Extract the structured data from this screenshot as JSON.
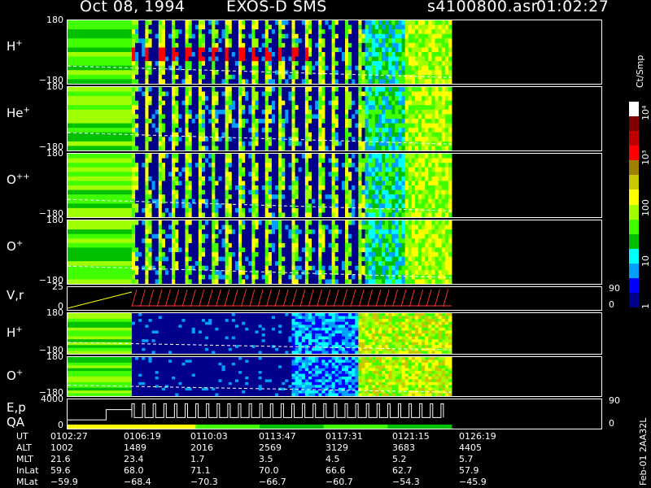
{
  "header": {
    "date": "Oct 08, 1994",
    "instrument": "EXOS-D SMS",
    "file": "s4100800.asr",
    "time": "01:02:27"
  },
  "panels": [
    {
      "label_main": "H",
      "label_sup": "+",
      "ymax": "180",
      "ymin": "−180",
      "kind": "spectro",
      "start": 0.12,
      "end": 0.72
    },
    {
      "label_main": "He",
      "label_sup": "+",
      "ymax": "180",
      "ymin": "−180",
      "kind": "spectro",
      "start": 0.12,
      "end": 0.72
    },
    {
      "label_main": "O",
      "label_sup": "++",
      "ymax": "180",
      "ymin": "−180",
      "kind": "spectro",
      "start": 0.12,
      "end": 0.72
    },
    {
      "label_main": "O",
      "label_sup": "+",
      "ymax": "180",
      "ymin": "−180",
      "kind": "spectro",
      "start": 0.12,
      "end": 0.72
    },
    {
      "label_main": "V,r",
      "label_sup": "",
      "ymax": "25",
      "ymin": "0",
      "kind": "line",
      "right_top": "90",
      "right_bottom": "0"
    },
    {
      "label_main": "H",
      "label_sup": "+",
      "ymax": "180",
      "ymin": "−180",
      "kind": "spectro2",
      "start": 0.12,
      "end": 0.72
    },
    {
      "label_main": "O",
      "label_sup": "+",
      "ymax": "180",
      "ymin": "−180",
      "kind": "spectro2",
      "start": 0.12,
      "end": 0.72
    },
    {
      "label_main": "E,p",
      "label_sup": "",
      "label2": "QA",
      "ymax": "4000",
      "ymin": "0",
      "kind": "step",
      "right_top": "90",
      "right_bottom": "0"
    }
  ],
  "colorbar": {
    "unit": "Ct/Smp",
    "ticks": [
      "1",
      "10",
      "100",
      "10³",
      "10⁴"
    ],
    "colors": [
      "#00008b",
      "#0000ff",
      "#00a0ff",
      "#00ffff",
      "#00c000",
      "#40ff00",
      "#a0ff00",
      "#ffff00",
      "#c8c800",
      "#a08000",
      "#ff0000",
      "#c00000",
      "#800000",
      "#ffffff"
    ]
  },
  "ephemeris": {
    "rows": [
      {
        "name": "UT",
        "values": [
          "0102:27",
          "0106:19",
          "0110:03",
          "0113:47",
          "0117:31",
          "0121:15",
          "0126:19"
        ]
      },
      {
        "name": "ALT",
        "values": [
          "1002",
          "1489",
          "2016",
          "2569",
          "3129",
          "3683",
          "4405"
        ]
      },
      {
        "name": "MLT",
        "values": [
          "21.6",
          "23.4",
          "1.7",
          "3.5",
          "4.5",
          "5.2",
          "5.7"
        ]
      },
      {
        "name": "InLat",
        "values": [
          "59.6",
          "68.0",
          "71.1",
          "70.0",
          "66.6",
          "62.7",
          "57.9"
        ]
      },
      {
        "name": "MLat",
        "values": [
          "−59.9",
          "−68.4",
          "−70.3",
          "−66.7",
          "−60.7",
          "−54.3",
          "−45.9"
        ]
      }
    ]
  },
  "side_stamp": "Feb-01 2AA32L"
}
